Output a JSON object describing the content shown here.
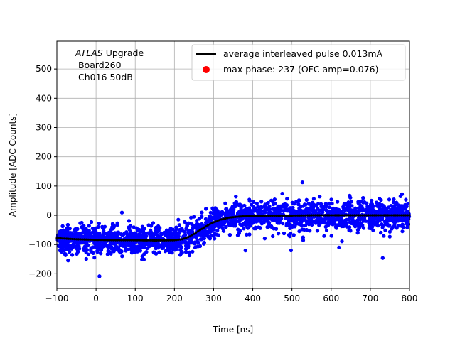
{
  "chart_data": {
    "type": "scatter",
    "xlabel": "Time [ns]",
    "ylabel": "Amplitude [ADC Counts]",
    "xlim": [
      -100,
      800
    ],
    "ylim": [
      -250,
      595
    ],
    "xticks": [
      -100,
      0,
      100,
      200,
      300,
      400,
      500,
      600,
      700,
      800
    ],
    "yticks": [
      -200,
      -100,
      0,
      100,
      200,
      300,
      400,
      500
    ],
    "grid": true,
    "legend_position": "top-right",
    "annotation": {
      "line1_italic": "ATLAS",
      "line1_rest": " Upgrade",
      "line2": " Board260",
      "line3": " Ch016 50dB"
    },
    "series": [
      {
        "name": "average interleaved pulse 0.013mA",
        "kind": "line",
        "color": "#000000",
        "x": [
          -100,
          -50,
          0,
          50,
          100,
          150,
          200,
          220,
          240,
          260,
          280,
          300,
          320,
          340,
          360,
          380,
          400,
          450,
          500,
          550,
          600,
          650,
          700,
          750,
          800
        ],
        "y": [
          -78,
          -82,
          -84,
          -85,
          -85,
          -86,
          -85,
          -82,
          -72,
          -55,
          -38,
          -24,
          -14,
          -8,
          -5,
          -3,
          -2,
          -1,
          -1,
          0,
          0,
          0,
          0,
          0,
          0
        ]
      },
      {
        "name": "max phase: 237 (OFC amp=0.076)",
        "kind": "marker",
        "color": "#ff0000",
        "x": [],
        "y": []
      }
    ],
    "scatter_cloud": {
      "color": "#0000ff",
      "spread_std": 25,
      "note": "dense cloud of raw samples around the average pulse"
    }
  }
}
